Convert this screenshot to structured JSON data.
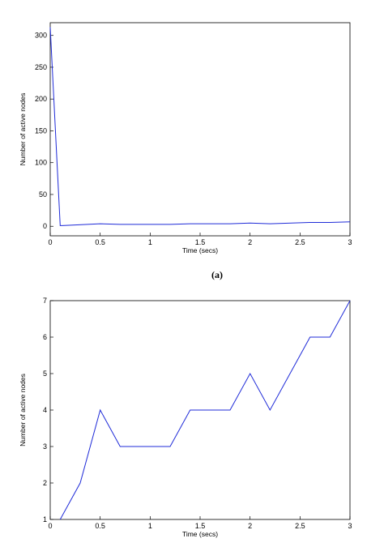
{
  "chart_data": [
    {
      "type": "line",
      "caption": "(a)",
      "xlabel": "Time (secs)",
      "ylabel": "Number of active nodes",
      "xlim": [
        0,
        3
      ],
      "ylim": [
        -15,
        320
      ],
      "xticks": [
        "0",
        "0.5",
        "1",
        "1.5",
        "2",
        "2.5",
        "3"
      ],
      "yticks": [
        "0",
        "50",
        "100",
        "150",
        "200",
        "250",
        "300"
      ],
      "grid": false,
      "color": "#1f2bd8",
      "x": [
        0,
        0.1,
        0.12,
        0.5,
        0.7,
        1.2,
        1.4,
        1.8,
        2.0,
        2.2,
        2.6,
        2.8,
        3.0
      ],
      "y": [
        313,
        1,
        1,
        4,
        3,
        3,
        4,
        4,
        5,
        4,
        6,
        6,
        7
      ]
    },
    {
      "type": "line",
      "caption": "",
      "xlabel": "Time (secs)",
      "ylabel": "Number of active nodes",
      "xlim": [
        0,
        3
      ],
      "ylim": [
        1,
        7
      ],
      "xticks": [
        "0",
        "0.5",
        "1",
        "1.5",
        "2",
        "2.5",
        "3"
      ],
      "yticks": [
        "1",
        "2",
        "3",
        "4",
        "5",
        "6",
        "7"
      ],
      "grid": false,
      "color": "#1f2bd8",
      "x": [
        0.1,
        0.3,
        0.5,
        0.7,
        1.2,
        1.4,
        1.8,
        2.0,
        2.2,
        2.6,
        2.8,
        3.0
      ],
      "y": [
        1,
        2,
        4,
        3,
        3,
        4,
        4,
        5,
        4,
        6,
        6,
        7
      ]
    }
  ]
}
